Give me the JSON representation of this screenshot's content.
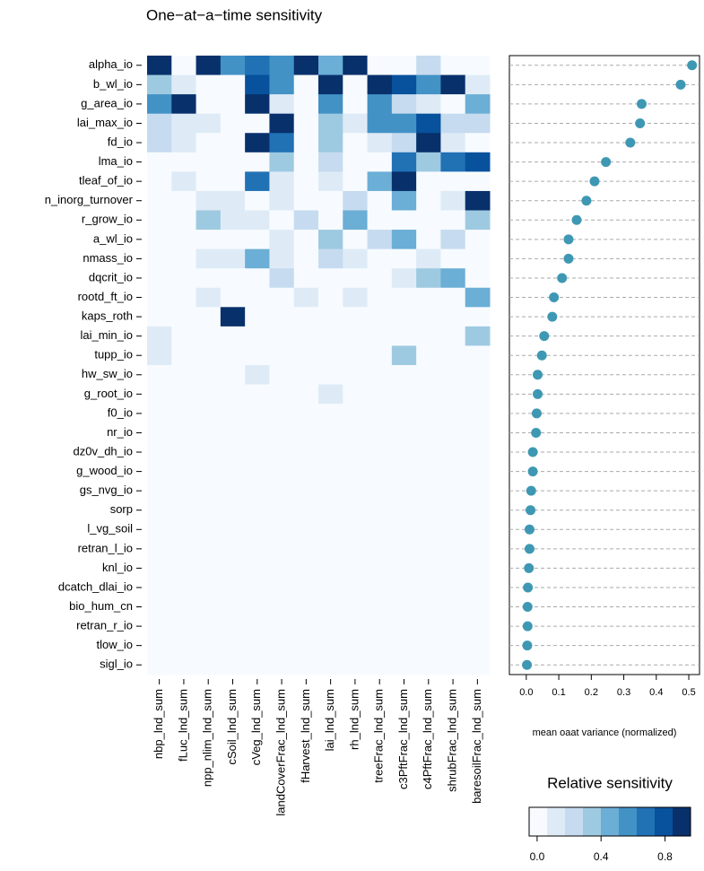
{
  "chart_data": [
    {
      "type": "heatmap",
      "title": "One−at−a−time sensitivity",
      "x_categories": [
        "nbp_lnd_sum",
        "fLuc_lnd_sum",
        "npp_nlim_lnd_sum",
        "cSoil_lnd_sum",
        "cVeg_lnd_sum",
        "landCoverFrac_lnd_sum",
        "fHarvest_lnd_sum",
        "lai_lnd_sum",
        "rh_lnd_sum",
        "treeFrac_lnd_sum",
        "c3PftFrac_lnd_sum",
        "c4PftFrac_lnd_sum",
        "shrubFrac_lnd_sum",
        "baresoilFrac_lnd_sum"
      ],
      "y_categories": [
        "alpha_io",
        "b_wl_io",
        "g_area_io",
        "lai_max_io",
        "fd_io",
        "lma_io",
        "tleaf_of_io",
        "n_inorg_turnover",
        "r_grow_io",
        "a_wl_io",
        "nmass_io",
        "dqcrit_io",
        "rootd_ft_io",
        "kaps_roth",
        "lai_min_io",
        "tupp_io",
        "hw_sw_io",
        "g_root_io",
        "f0_io",
        "nr_io",
        "dz0v_dh_io",
        "g_wood_io",
        "gs_nvg_io",
        "sorp",
        "l_vg_soil",
        "retran_l_io",
        "knl_io",
        "dcatch_dlai_io",
        "bio_hum_cn",
        "retran_r_io",
        "tlow_io",
        "sigl_io"
      ],
      "values": [
        [
          0.95,
          0,
          0.95,
          0.57,
          0.68,
          0.57,
          0.95,
          0.45,
          0.95,
          0,
          0,
          0.23,
          0,
          0
        ],
        [
          0.34,
          0.12,
          0,
          0,
          0.79,
          0.57,
          0,
          0.95,
          0,
          0.95,
          0.79,
          0.57,
          0.95,
          0.12
        ],
        [
          0.57,
          0.95,
          0,
          0,
          0.95,
          0.12,
          0,
          0.57,
          0,
          0.57,
          0.23,
          0.12,
          0,
          0.45
        ],
        [
          0.23,
          0.12,
          0.12,
          0,
          0,
          0.95,
          0,
          0.34,
          0.12,
          0.57,
          0.57,
          0.79,
          0.23,
          0.23
        ],
        [
          0.23,
          0.12,
          0,
          0,
          0.95,
          0.68,
          0,
          0.34,
          0,
          0.12,
          0.23,
          0.95,
          0.12,
          0
        ],
        [
          0,
          0,
          0,
          0,
          0,
          0.34,
          0,
          0.23,
          0,
          0,
          0.68,
          0.34,
          0.68,
          0.79
        ],
        [
          0,
          0.12,
          0,
          0,
          0.68,
          0.12,
          0,
          0.12,
          0,
          0.45,
          0.95,
          0,
          0,
          0
        ],
        [
          0,
          0,
          0.12,
          0.12,
          0,
          0.12,
          0,
          0,
          0.23,
          0,
          0.45,
          0,
          0.12,
          0.95
        ],
        [
          0,
          0,
          0.34,
          0.12,
          0.12,
          0,
          0.23,
          0,
          0.45,
          0,
          0,
          0,
          0,
          0.34
        ],
        [
          0,
          0,
          0,
          0,
          0,
          0.12,
          0,
          0.34,
          0,
          0.23,
          0.45,
          0,
          0.23,
          0
        ],
        [
          0,
          0,
          0.12,
          0.12,
          0.45,
          0.12,
          0,
          0.23,
          0.12,
          0,
          0,
          0.12,
          0,
          0
        ],
        [
          0,
          0,
          0,
          0,
          0,
          0.23,
          0,
          0,
          0,
          0,
          0.12,
          0.34,
          0.45,
          0
        ],
        [
          0,
          0,
          0.12,
          0,
          0,
          0,
          0.12,
          0,
          0.12,
          0,
          0,
          0,
          0,
          0.45
        ],
        [
          0,
          0,
          0,
          0.95,
          0,
          0,
          0,
          0,
          0,
          0,
          0,
          0,
          0,
          0
        ],
        [
          0.12,
          0,
          0,
          0,
          0,
          0,
          0,
          0,
          0,
          0,
          0,
          0,
          0,
          0.34
        ],
        [
          0.12,
          0,
          0,
          0,
          0,
          0,
          0,
          0,
          0,
          0,
          0.34,
          0,
          0,
          0
        ],
        [
          0,
          0,
          0,
          0,
          0.12,
          0,
          0,
          0,
          0,
          0,
          0,
          0,
          0,
          0
        ],
        [
          0,
          0,
          0,
          0,
          0,
          0,
          0,
          0.12,
          0,
          0,
          0,
          0,
          0,
          0
        ],
        [
          0,
          0,
          0,
          0,
          0,
          0,
          0,
          0,
          0,
          0,
          0,
          0,
          0,
          0
        ],
        [
          0,
          0,
          0,
          0,
          0,
          0,
          0,
          0,
          0,
          0,
          0,
          0,
          0,
          0
        ],
        [
          0,
          0,
          0,
          0,
          0,
          0,
          0,
          0,
          0,
          0,
          0,
          0,
          0,
          0
        ],
        [
          0,
          0,
          0,
          0,
          0,
          0,
          0,
          0,
          0,
          0,
          0,
          0,
          0,
          0
        ],
        [
          0,
          0,
          0,
          0,
          0,
          0,
          0,
          0,
          0,
          0,
          0,
          0,
          0,
          0
        ],
        [
          0,
          0,
          0,
          0,
          0,
          0,
          0,
          0,
          0,
          0,
          0,
          0,
          0,
          0
        ],
        [
          0,
          0,
          0,
          0,
          0,
          0,
          0,
          0,
          0,
          0,
          0,
          0,
          0,
          0
        ],
        [
          0,
          0,
          0,
          0,
          0,
          0,
          0,
          0,
          0,
          0,
          0,
          0,
          0,
          0
        ],
        [
          0,
          0,
          0,
          0,
          0,
          0,
          0,
          0,
          0,
          0,
          0,
          0,
          0,
          0
        ],
        [
          0,
          0,
          0,
          0,
          0,
          0,
          0,
          0,
          0,
          0,
          0,
          0,
          0,
          0
        ],
        [
          0,
          0,
          0,
          0,
          0,
          0,
          0,
          0,
          0,
          0,
          0,
          0,
          0,
          0
        ],
        [
          0,
          0,
          0,
          0,
          0,
          0,
          0,
          0,
          0,
          0,
          0,
          0,
          0,
          0
        ],
        [
          0,
          0,
          0,
          0,
          0,
          0,
          0,
          0,
          0,
          0,
          0,
          0,
          0,
          0
        ],
        [
          0,
          0,
          0,
          0,
          0,
          0,
          0,
          0,
          0,
          0,
          0,
          0,
          0,
          0
        ]
      ],
      "colors": [
        "#f7fbff",
        "#deebf7",
        "#c6dbef",
        "#9ecae1",
        "#6baed6",
        "#4292c6",
        "#2171b5",
        "#08519c",
        "#08306b"
      ],
      "legend": {
        "title": "Relative sensitivity",
        "lim": [
          -0.05,
          0.96
        ],
        "ticks": [
          {
            "value": 0,
            "label": "0.0"
          },
          {
            "value": 0.4,
            "label": "0.4"
          },
          {
            "value": 0.8,
            "label": "0.8"
          }
        ]
      }
    },
    {
      "type": "dot",
      "xlabel": "mean oaat variance (normalized)",
      "color": "#3e98b3",
      "grid": true,
      "values": [
        0.51,
        0.475,
        0.355,
        0.35,
        0.32,
        0.245,
        0.21,
        0.185,
        0.155,
        0.13,
        0.13,
        0.11,
        0.085,
        0.08,
        0.055,
        0.048,
        0.035,
        0.035,
        0.032,
        0.03,
        0.02,
        0.02,
        0.015,
        0.013,
        0.01,
        0.01,
        0.008,
        0.005,
        0.004,
        0.004,
        0.003,
        0.002
      ],
      "xlim": [
        -0.052,
        0.533
      ],
      "xticks": [
        {
          "value": 0,
          "label": "0.0"
        },
        {
          "value": 0.1,
          "label": "0.1"
        },
        {
          "value": 0.2,
          "label": "0.2"
        },
        {
          "value": 0.3,
          "label": "0.3"
        },
        {
          "value": 0.4,
          "label": "0.4"
        },
        {
          "value": 0.5,
          "label": "0.5"
        }
      ]
    }
  ]
}
